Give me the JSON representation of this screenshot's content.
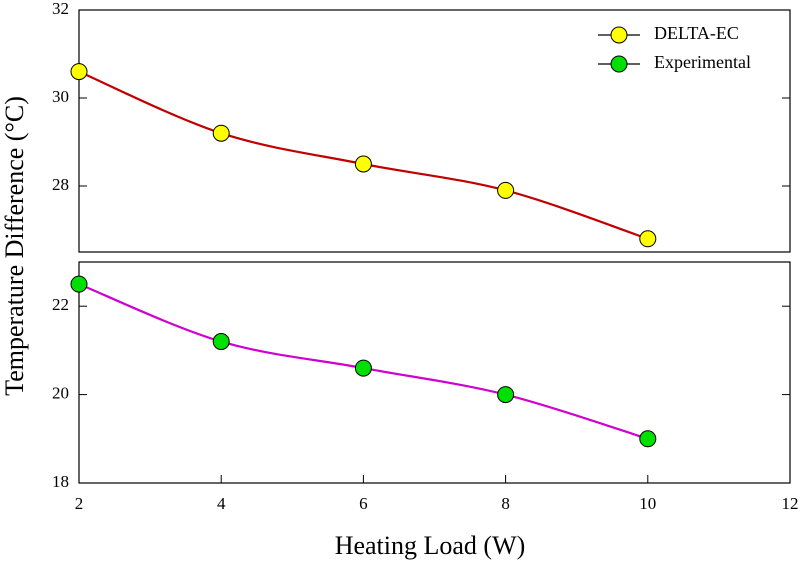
{
  "chart_data": {
    "type": "line",
    "xlabel": "Heating Load (W)",
    "ylabel": "Temperature Difference (°C)",
    "x": [
      2,
      4,
      6,
      8,
      10
    ],
    "xlim": [
      2,
      12
    ],
    "xticks": [
      2,
      4,
      6,
      8,
      10,
      12
    ],
    "ylim": [
      18,
      23
    ],
    "yticks": [
      18,
      20,
      22
    ],
    "y2lim": [
      26.5,
      32
    ],
    "y2ticks": [
      28,
      30,
      32
    ],
    "legend": "upper right",
    "series": [
      {
        "name": "DELTA-EC",
        "color": "#ffff00",
        "line_color": "#c00000",
        "axis": "y2",
        "values": [
          30.6,
          29.2,
          28.5,
          27.9,
          26.8
        ]
      },
      {
        "name": "Experimental",
        "color": "#00e000",
        "line_color": "#d000d0",
        "values": [
          22.5,
          21.2,
          20.6,
          20.0,
          19.0
        ]
      }
    ]
  }
}
